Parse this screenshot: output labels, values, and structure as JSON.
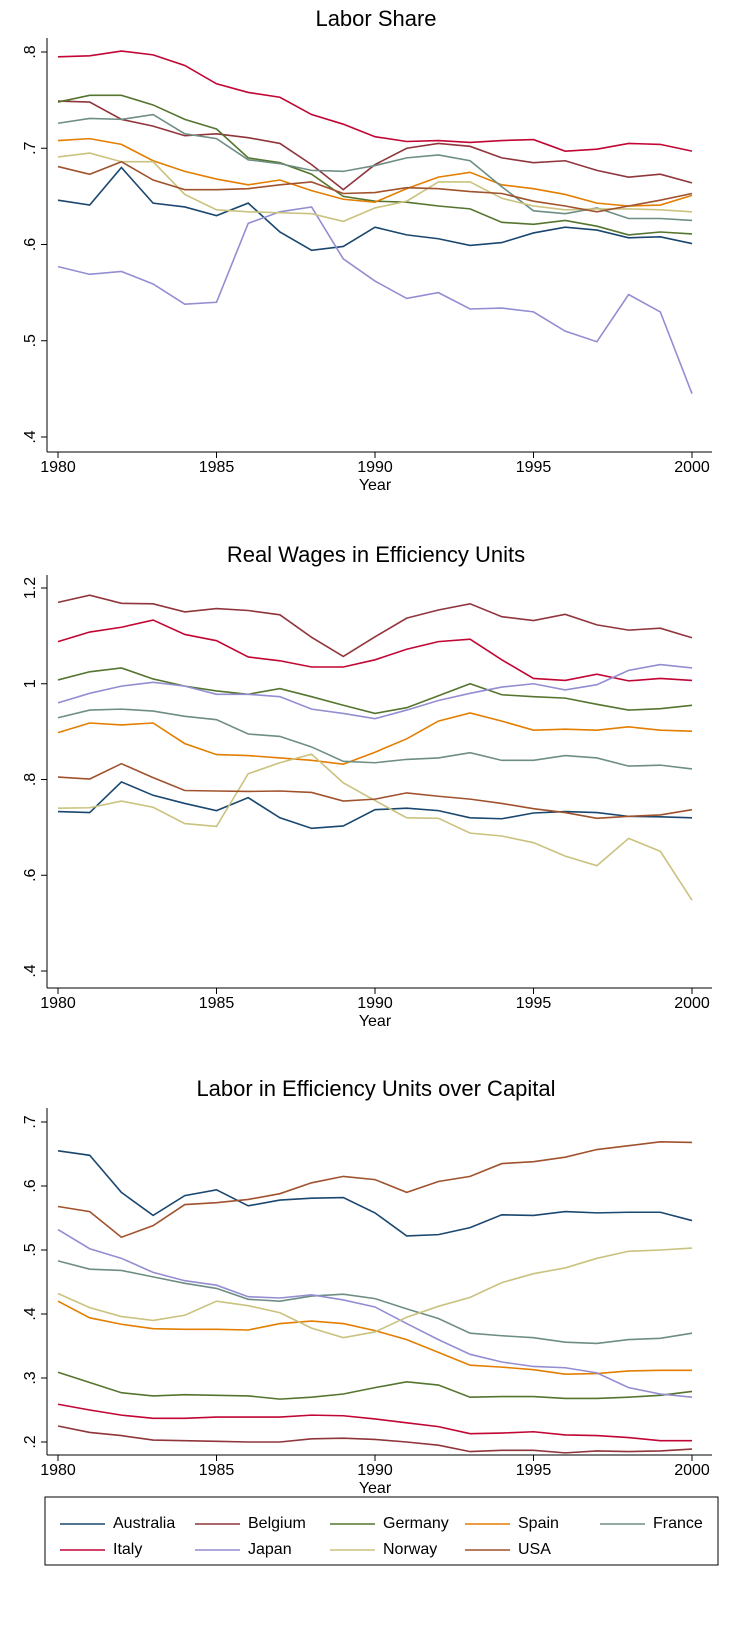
{
  "chart_data": [
    {
      "type": "line",
      "title": "Labor Share",
      "xlabel": "Year",
      "x": [
        1980,
        1981,
        1982,
        1983,
        1984,
        1985,
        1986,
        1987,
        1988,
        1989,
        1990,
        1991,
        1992,
        1993,
        1994,
        1995,
        1996,
        1997,
        1998,
        1999,
        2000
      ],
      "xlim": [
        1980,
        2000
      ],
      "xticks": [
        1980,
        1985,
        1990,
        1995,
        2000
      ],
      "ylim": [
        0.4,
        0.8
      ],
      "yticks": [
        {
          "value": 0.4,
          "label": ".4"
        },
        {
          "value": 0.5,
          "label": ".5"
        },
        {
          "value": 0.6,
          "label": ".6"
        },
        {
          "value": 0.7,
          "label": ".7"
        },
        {
          "value": 0.8,
          "label": ".8"
        }
      ],
      "series": [
        {
          "color": "#1a476f",
          "values": [
            0.646,
            0.641,
            0.68,
            0.643,
            0.639,
            0.63,
            0.643,
            0.613,
            0.594,
            0.598,
            0.618,
            0.61,
            0.606,
            0.599,
            0.602,
            0.612,
            0.618,
            0.615,
            0.607,
            0.608,
            0.601
          ]
        },
        {
          "color": "#90353b",
          "values": [
            0.749,
            0.748,
            0.73,
            0.723,
            0.713,
            0.715,
            0.711,
            0.705,
            0.683,
            0.657,
            0.683,
            0.7,
            0.705,
            0.702,
            0.69,
            0.685,
            0.687,
            0.677,
            0.67,
            0.673,
            0.664
          ]
        },
        {
          "color": "#55752f",
          "values": [
            0.748,
            0.755,
            0.755,
            0.745,
            0.73,
            0.72,
            0.69,
            0.685,
            0.673,
            0.65,
            0.645,
            0.644,
            0.64,
            0.637,
            0.623,
            0.621,
            0.625,
            0.619,
            0.61,
            0.613,
            0.611
          ]
        },
        {
          "color": "#e37e00",
          "values": [
            0.708,
            0.71,
            0.704,
            0.687,
            0.676,
            0.668,
            0.662,
            0.667,
            0.656,
            0.647,
            0.644,
            0.658,
            0.67,
            0.675,
            0.662,
            0.658,
            0.652,
            0.643,
            0.64,
            0.641,
            0.651
          ]
        },
        {
          "color": "#6e8e84",
          "values": [
            0.726,
            0.731,
            0.73,
            0.735,
            0.715,
            0.71,
            0.688,
            0.684,
            0.677,
            0.676,
            0.682,
            0.69,
            0.693,
            0.687,
            0.66,
            0.635,
            0.632,
            0.638,
            0.627,
            0.627,
            0.625
          ]
        },
        {
          "color": "#c10534",
          "values": [
            0.795,
            0.796,
            0.801,
            0.797,
            0.786,
            0.767,
            0.758,
            0.753,
            0.735,
            0.725,
            0.712,
            0.707,
            0.708,
            0.706,
            0.708,
            0.709,
            0.697,
            0.699,
            0.705,
            0.704,
            0.697
          ]
        },
        {
          "color": "#938dd2",
          "values": [
            0.577,
            0.569,
            0.572,
            0.559,
            0.538,
            0.54,
            0.622,
            0.634,
            0.639,
            0.585,
            0.562,
            0.544,
            0.55,
            0.533,
            0.534,
            0.53,
            0.51,
            0.499,
            0.548,
            0.53,
            0.445
          ]
        },
        {
          "color": "#cac27e",
          "values": [
            0.691,
            0.695,
            0.686,
            0.686,
            0.652,
            0.636,
            0.634,
            0.633,
            0.632,
            0.624,
            0.638,
            0.645,
            0.665,
            0.665,
            0.648,
            0.64,
            0.636,
            0.637,
            0.637,
            0.636,
            0.634
          ]
        },
        {
          "color": "#a0522d",
          "values": [
            0.681,
            0.673,
            0.686,
            0.667,
            0.657,
            0.657,
            0.658,
            0.662,
            0.665,
            0.653,
            0.654,
            0.659,
            0.658,
            0.655,
            0.653,
            0.645,
            0.64,
            0.634,
            0.64,
            0.646,
            0.653
          ]
        }
      ]
    },
    {
      "type": "line",
      "title": "Real Wages in Efficiency Units",
      "xlabel": "Year",
      "x": [
        1980,
        1981,
        1982,
        1983,
        1984,
        1985,
        1986,
        1987,
        1988,
        1989,
        1990,
        1991,
        1992,
        1993,
        1994,
        1995,
        1996,
        1997,
        1998,
        1999,
        2000
      ],
      "xlim": [
        1980,
        2000
      ],
      "xticks": [
        1980,
        1985,
        1990,
        1995,
        2000
      ],
      "ylim": [
        0.4,
        1.2
      ],
      "yticks": [
        {
          "value": 0.4,
          "label": ".4"
        },
        {
          "value": 0.6,
          "label": ".6"
        },
        {
          "value": 0.8,
          "label": ".8"
        },
        1,
        1.2
      ],
      "series": [
        {
          "color": "#1a476f",
          "values": [
            0.733,
            0.731,
            0.795,
            0.767,
            0.75,
            0.735,
            0.762,
            0.72,
            0.698,
            0.703,
            0.737,
            0.74,
            0.735,
            0.72,
            0.718,
            0.73,
            0.733,
            0.731,
            0.723,
            0.722,
            0.72
          ]
        },
        {
          "color": "#90353b",
          "values": [
            1.17,
            1.185,
            1.168,
            1.167,
            1.15,
            1.157,
            1.153,
            1.144,
            1.097,
            1.057,
            1.098,
            1.137,
            1.154,
            1.167,
            1.14,
            1.132,
            1.145,
            1.123,
            1.112,
            1.116,
            1.096
          ]
        },
        {
          "color": "#55752f",
          "values": [
            1.008,
            1.025,
            1.033,
            1.01,
            0.995,
            0.985,
            0.978,
            0.99,
            0.973,
            0.955,
            0.938,
            0.95,
            0.975,
            1.0,
            0.977,
            0.973,
            0.97,
            0.957,
            0.945,
            0.948,
            0.955
          ]
        },
        {
          "color": "#e37e00",
          "values": [
            0.898,
            0.918,
            0.914,
            0.918,
            0.875,
            0.852,
            0.85,
            0.845,
            0.84,
            0.832,
            0.857,
            0.885,
            0.922,
            0.939,
            0.922,
            0.903,
            0.905,
            0.903,
            0.91,
            0.903,
            0.901
          ]
        },
        {
          "color": "#6e8e84",
          "values": [
            0.929,
            0.945,
            0.947,
            0.943,
            0.932,
            0.925,
            0.895,
            0.89,
            0.868,
            0.838,
            0.835,
            0.842,
            0.845,
            0.856,
            0.84,
            0.84,
            0.85,
            0.845,
            0.828,
            0.83,
            0.822
          ]
        },
        {
          "color": "#c10534",
          "values": [
            1.088,
            1.108,
            1.118,
            1.133,
            1.103,
            1.09,
            1.056,
            1.048,
            1.035,
            1.035,
            1.05,
            1.072,
            1.088,
            1.093,
            1.05,
            1.011,
            1.007,
            1.02,
            1.006,
            1.011,
            1.007
          ]
        },
        {
          "color": "#938dd2",
          "values": [
            0.96,
            0.98,
            0.995,
            1.003,
            0.995,
            0.978,
            0.978,
            0.973,
            0.947,
            0.938,
            0.927,
            0.945,
            0.965,
            0.98,
            0.993,
            1.0,
            0.987,
            0.998,
            1.028,
            1.04,
            1.033
          ]
        },
        {
          "color": "#cac27e",
          "values": [
            0.74,
            0.741,
            0.755,
            0.742,
            0.708,
            0.702,
            0.812,
            0.835,
            0.853,
            0.793,
            0.756,
            0.72,
            0.719,
            0.688,
            0.682,
            0.668,
            0.64,
            0.62,
            0.677,
            0.65,
            0.548
          ]
        },
        {
          "color": "#a0522d",
          "values": [
            0.805,
            0.801,
            0.833,
            0.804,
            0.777,
            0.776,
            0.775,
            0.776,
            0.773,
            0.755,
            0.759,
            0.772,
            0.765,
            0.759,
            0.75,
            0.739,
            0.731,
            0.719,
            0.723,
            0.726,
            0.737
          ]
        }
      ]
    },
    {
      "type": "line",
      "title": "Labor in Efficiency Units over Capital",
      "xlabel": "Year",
      "x": [
        1980,
        1981,
        1982,
        1983,
        1984,
        1985,
        1986,
        1987,
        1988,
        1989,
        1990,
        1991,
        1992,
        1993,
        1994,
        1995,
        1996,
        1997,
        1998,
        1999,
        2000
      ],
      "xlim": [
        1980,
        2000
      ],
      "xticks": [
        1980,
        1985,
        1990,
        1995,
        2000
      ],
      "ylim": [
        0.2,
        0.7
      ],
      "yticks": [
        {
          "value": 0.2,
          "label": ".2"
        },
        {
          "value": 0.3,
          "label": ".3"
        },
        {
          "value": 0.4,
          "label": ".4"
        },
        {
          "value": 0.5,
          "label": ".5"
        },
        {
          "value": 0.6,
          "label": ".6"
        },
        {
          "value": 0.7,
          "label": ".7"
        }
      ],
      "legend": "bottom",
      "series": [
        {
          "name": "Australia",
          "color": "#1a476f",
          "values": [
            0.655,
            0.648,
            0.59,
            0.554,
            0.585,
            0.594,
            0.569,
            0.578,
            0.581,
            0.582,
            0.558,
            0.522,
            0.524,
            0.535,
            0.555,
            0.554,
            0.56,
            0.558,
            0.559,
            0.559,
            0.546
          ]
        },
        {
          "name": "Belgium",
          "color": "#90353b",
          "values": [
            0.225,
            0.215,
            0.21,
            0.203,
            0.202,
            0.201,
            0.2,
            0.2,
            0.205,
            0.206,
            0.204,
            0.2,
            0.195,
            0.185,
            0.187,
            0.187,
            0.183,
            0.186,
            0.185,
            0.186,
            0.189
          ]
        },
        {
          "name": "Germany",
          "color": "#55752f",
          "values": [
            0.309,
            0.293,
            0.277,
            0.272,
            0.274,
            0.273,
            0.272,
            0.267,
            0.27,
            0.275,
            0.285,
            0.294,
            0.289,
            0.27,
            0.271,
            0.271,
            0.268,
            0.268,
            0.27,
            0.273,
            0.279
          ]
        },
        {
          "name": "Spain",
          "color": "#e37e00",
          "values": [
            0.42,
            0.394,
            0.384,
            0.377,
            0.376,
            0.376,
            0.375,
            0.385,
            0.389,
            0.385,
            0.374,
            0.36,
            0.34,
            0.32,
            0.317,
            0.313,
            0.306,
            0.307,
            0.311,
            0.312,
            0.312
          ]
        },
        {
          "name": "France",
          "color": "#6e8e84",
          "values": [
            0.483,
            0.47,
            0.468,
            0.458,
            0.448,
            0.44,
            0.423,
            0.42,
            0.428,
            0.431,
            0.424,
            0.408,
            0.393,
            0.37,
            0.366,
            0.363,
            0.356,
            0.354,
            0.36,
            0.362,
            0.37
          ]
        },
        {
          "name": "Italy",
          "color": "#c10534",
          "values": [
            0.259,
            0.25,
            0.242,
            0.237,
            0.237,
            0.239,
            0.239,
            0.239,
            0.242,
            0.241,
            0.236,
            0.23,
            0.224,
            0.213,
            0.214,
            0.216,
            0.211,
            0.21,
            0.207,
            0.202,
            0.202
          ]
        },
        {
          "name": "Japan",
          "color": "#938dd2",
          "values": [
            0.532,
            0.502,
            0.487,
            0.465,
            0.452,
            0.445,
            0.427,
            0.425,
            0.43,
            0.422,
            0.411,
            0.385,
            0.36,
            0.337,
            0.325,
            0.318,
            0.316,
            0.308,
            0.285,
            0.275,
            0.27
          ]
        },
        {
          "name": "Norway",
          "color": "#cac27e",
          "values": [
            0.432,
            0.41,
            0.396,
            0.39,
            0.398,
            0.42,
            0.413,
            0.402,
            0.378,
            0.363,
            0.372,
            0.395,
            0.412,
            0.426,
            0.449,
            0.463,
            0.472,
            0.487,
            0.498,
            0.5,
            0.503
          ]
        },
        {
          "name": "USA",
          "color": "#a0522d",
          "values": [
            0.568,
            0.56,
            0.52,
            0.538,
            0.571,
            0.574,
            0.579,
            0.588,
            0.605,
            0.615,
            0.61,
            0.59,
            0.607,
            0.615,
            0.635,
            0.638,
            0.645,
            0.657,
            0.663,
            0.669,
            0.668
          ]
        }
      ]
    }
  ]
}
